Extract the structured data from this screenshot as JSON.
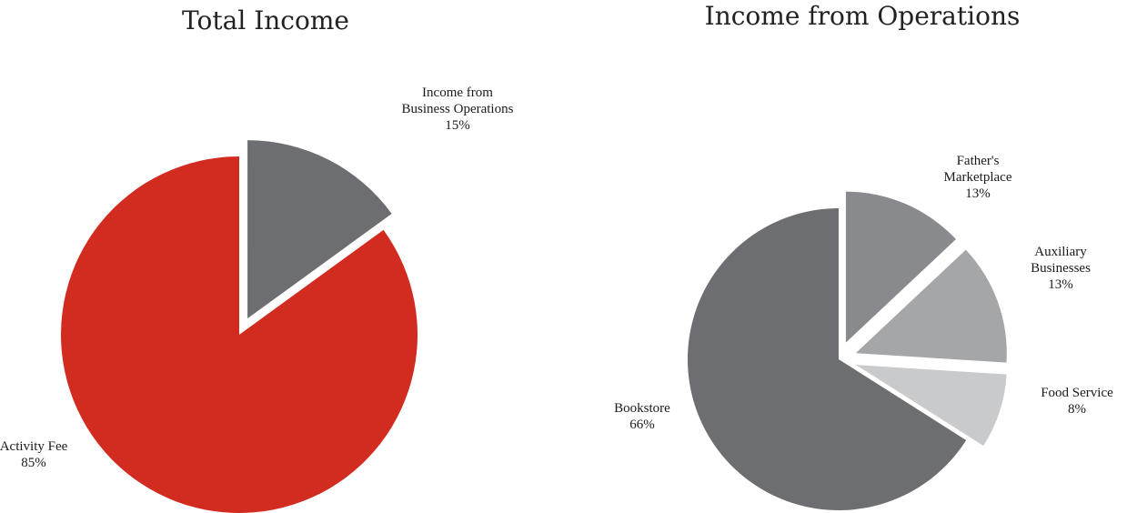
{
  "chart_data": [
    {
      "type": "pie",
      "title": "Total Income",
      "start_angle_deg": 0,
      "slices": [
        {
          "label_lines": [
            "Income from",
            "Business Operations"
          ],
          "pct_label": "15%",
          "value": 15,
          "color": "#6d6e71",
          "exploded": true
        },
        {
          "label_lines": [
            "Activity Fee"
          ],
          "pct_label": "85%",
          "value": 85,
          "color": "#d22b20",
          "exploded": false
        }
      ]
    },
    {
      "type": "pie",
      "title": "Income from Operations",
      "start_angle_deg": 0,
      "slices": [
        {
          "label_lines": [
            "Father's",
            "Marketplace"
          ],
          "pct_label": "13%",
          "value": 13,
          "color": "#898a8d",
          "exploded": true
        },
        {
          "label_lines": [
            "Auxiliary",
            "Businesses"
          ],
          "pct_label": "13%",
          "value": 13,
          "color": "#a5a6a8",
          "exploded": true
        },
        {
          "label_lines": [
            "Food Service"
          ],
          "pct_label": "8%",
          "value": 8,
          "color": "#c9cacb",
          "exploded": true
        },
        {
          "label_lines": [
            "Bookstore"
          ],
          "pct_label": "66%",
          "value": 66,
          "color": "#6d6e71",
          "exploded": false
        }
      ]
    }
  ]
}
